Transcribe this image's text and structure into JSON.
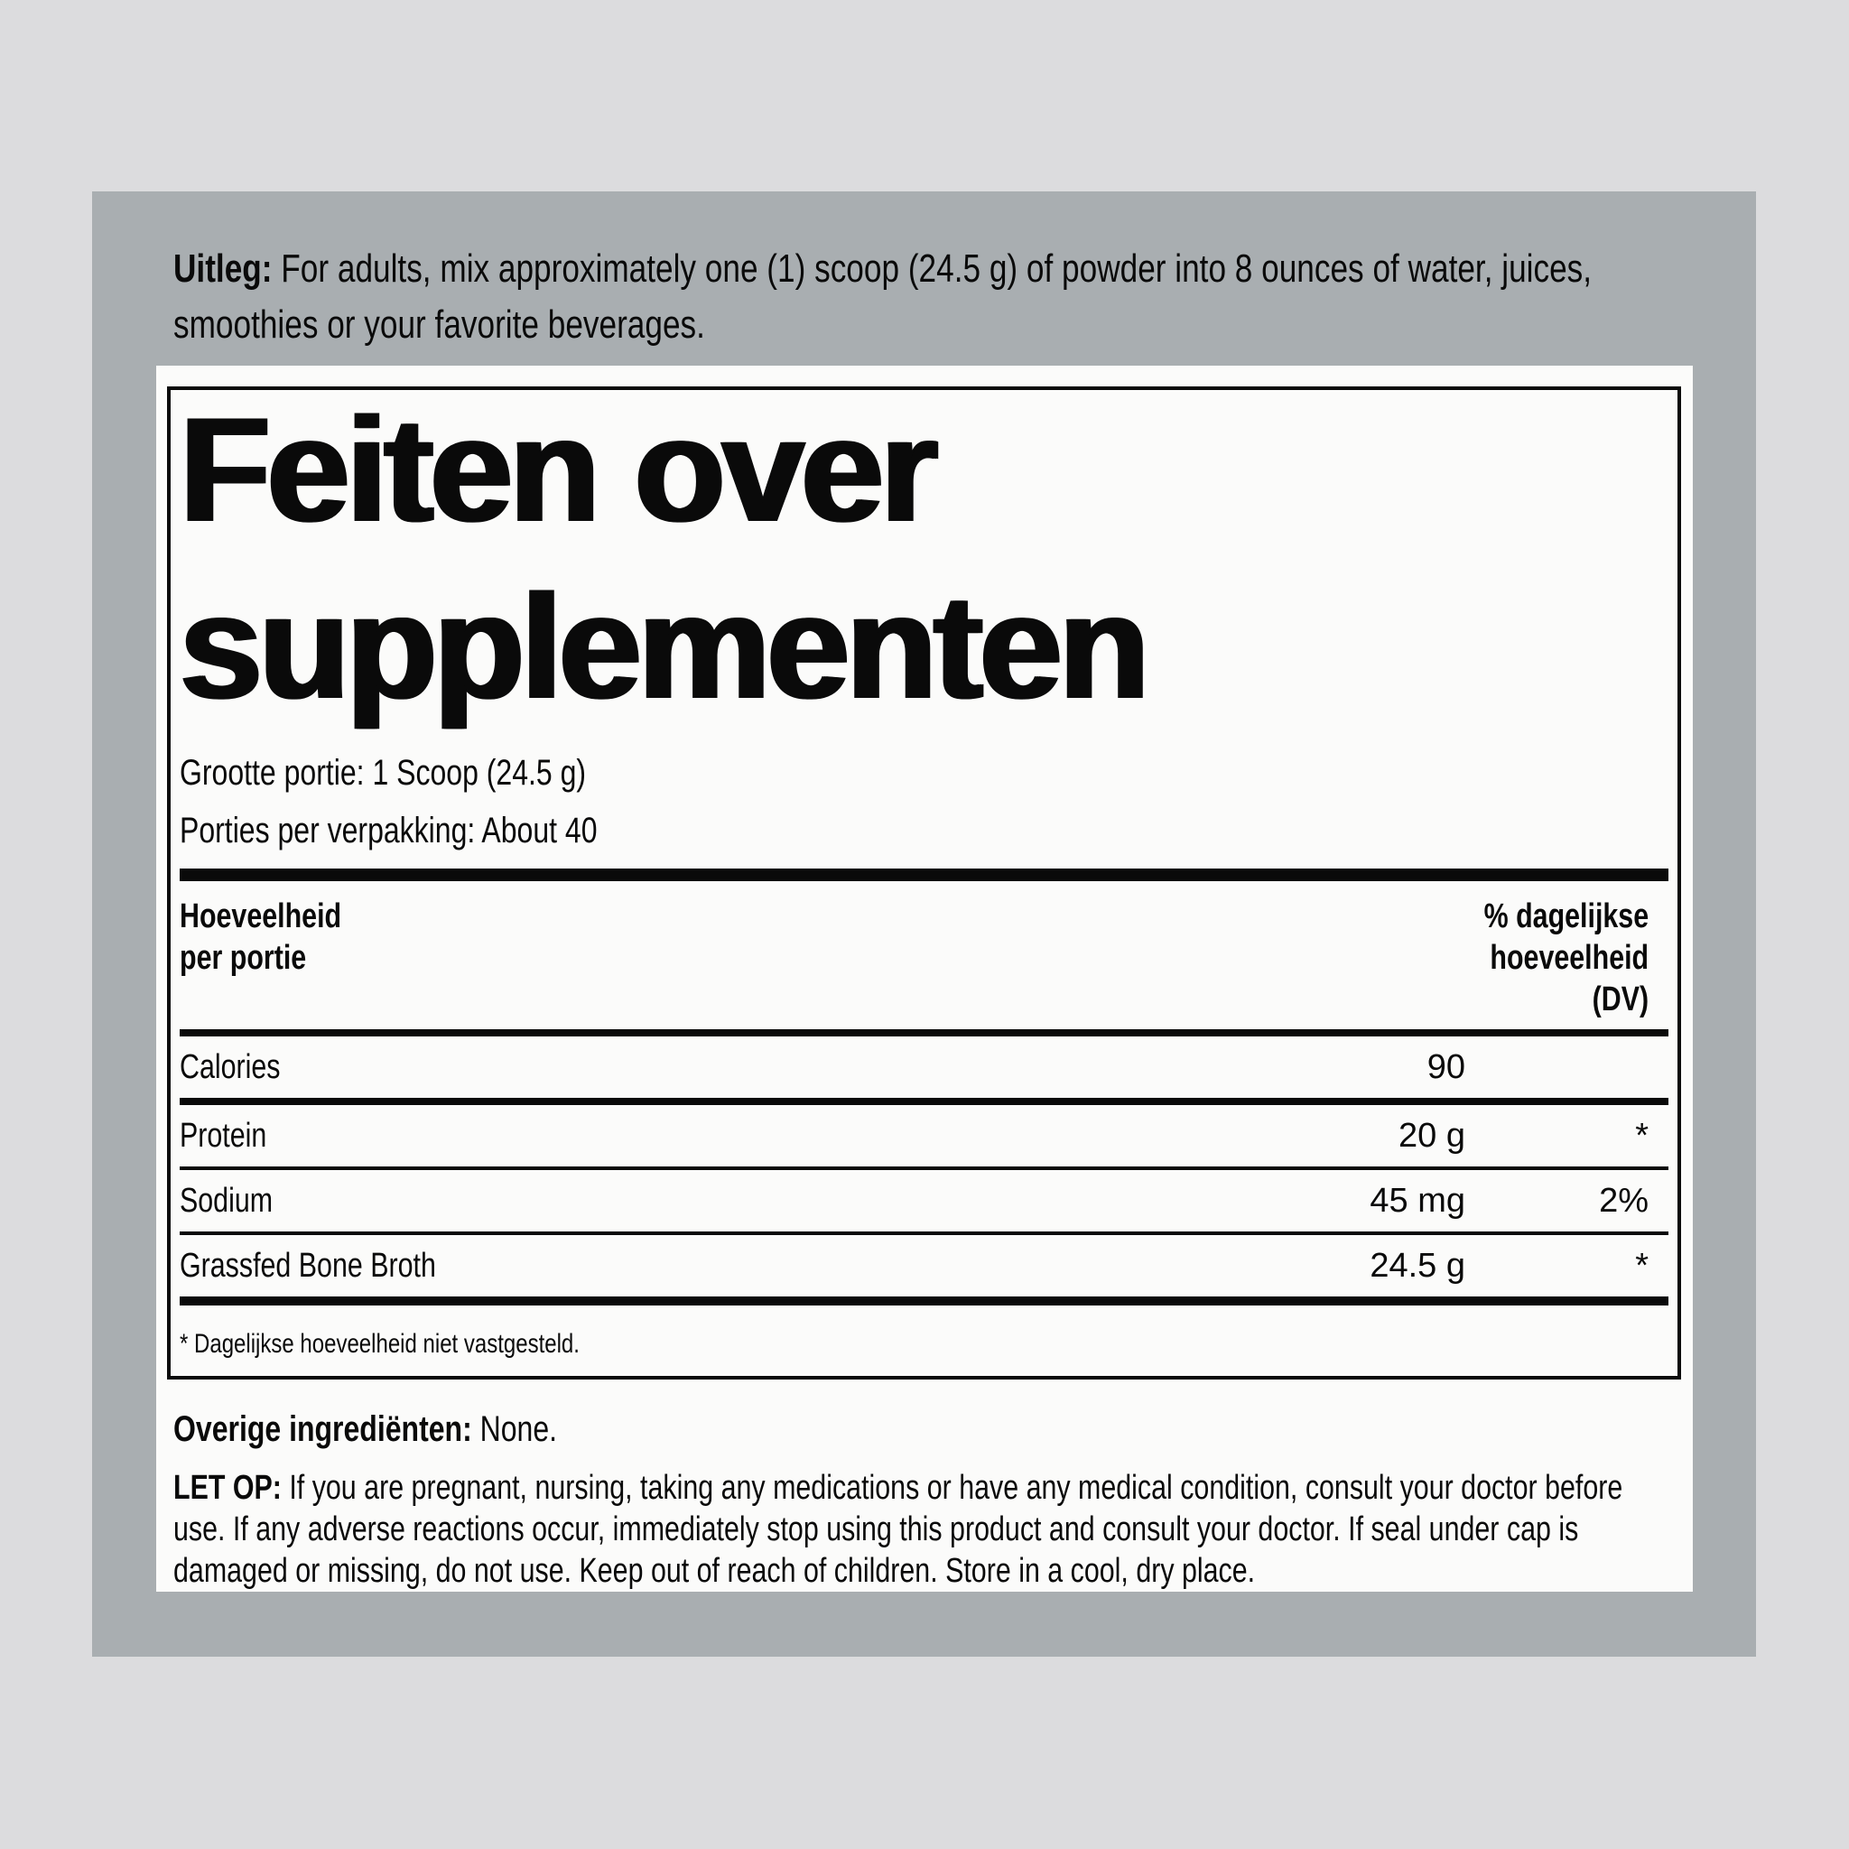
{
  "colors": {
    "outer_background": "#dcdcde",
    "panel_background": "#a9aeb1",
    "label_background": "#fbfbfa",
    "text": "#0a0a0a"
  },
  "directions": {
    "lead": "Uitleg:",
    "lines": [
      "For adults, mix approximately one (1) scoop (24.5 g) of powder into 8 ounces of water, juices,",
      "smoothies or your favorite beverages."
    ]
  },
  "facts": {
    "title_lines": [
      "Feiten over",
      "supplementen"
    ],
    "serving_size": "Grootte portie: 1 Scoop (24.5 g)",
    "servings_per_container": "Porties per verpakking: About 40",
    "amount_header_lines": [
      "Hoeveelheid",
      "per portie"
    ],
    "dv_header_lines": [
      "% dagelijkse",
      "hoeveelheid",
      "(DV)"
    ],
    "rows": [
      {
        "name": "Calories",
        "amount": "90",
        "dv": ""
      },
      {
        "name": "Protein",
        "amount": "20 g",
        "dv": "*"
      },
      {
        "name": "Sodium",
        "amount": "45 mg",
        "dv": "2%"
      },
      {
        "name": "Grassfed Bone Broth",
        "amount": "24.5 g",
        "dv": "*"
      }
    ],
    "footnote": "* Dagelijkse hoeveelheid niet vastgesteld."
  },
  "other_ingredients": {
    "lead": "Overige ingrediënten:",
    "text": "None."
  },
  "warning": {
    "lead": "LET OP:",
    "lines": [
      "If you are pregnant, nursing, taking any medications or have any medical condition, consult your doctor before",
      "use. If any adverse reactions occur, immediately stop using this product and consult your doctor. If seal under cap is",
      "damaged or missing, do not use. Keep out of reach of children. Store in a cool, dry place."
    ]
  }
}
